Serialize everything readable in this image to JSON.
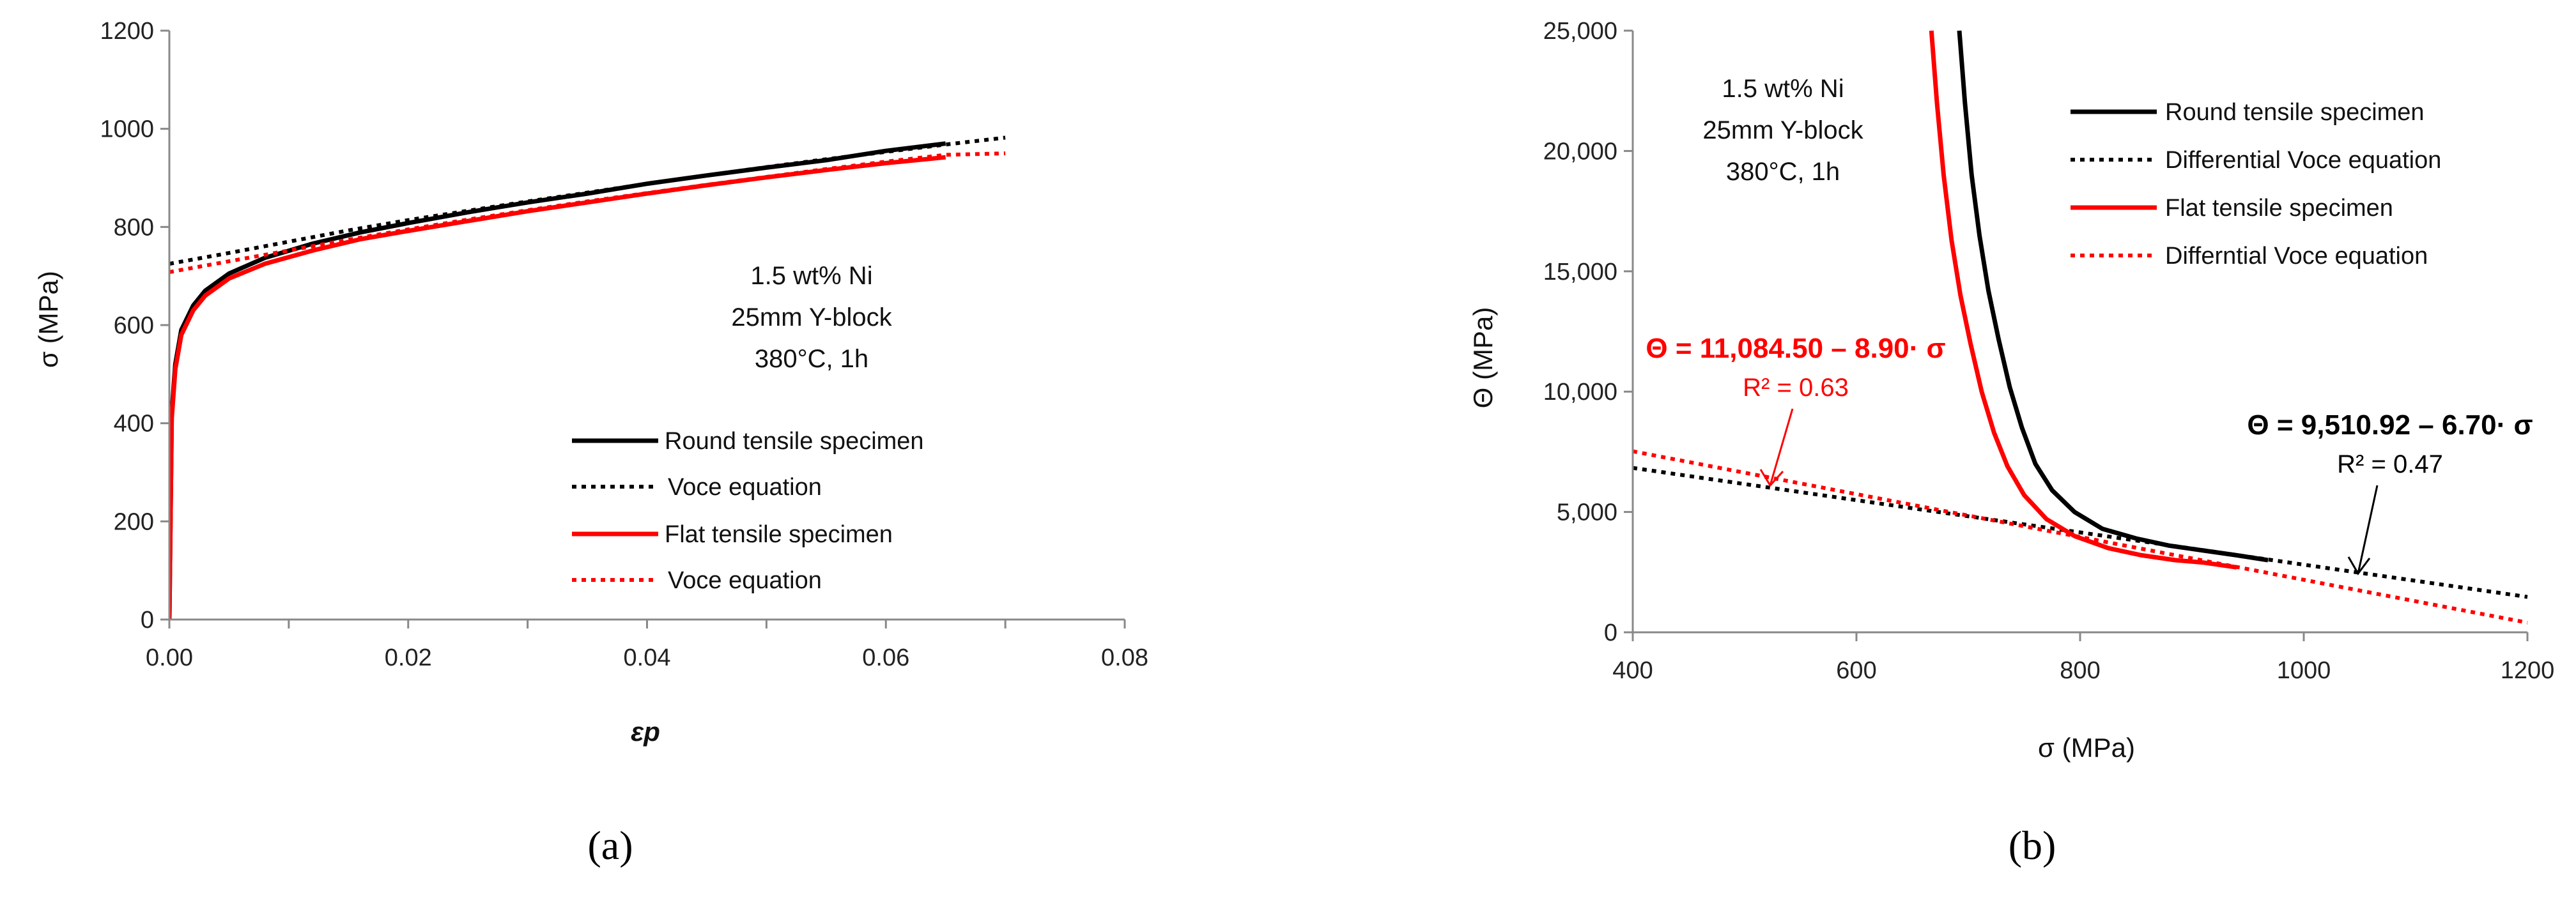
{
  "chart_data": [
    {
      "type": "line",
      "panel_label": "(a)",
      "xlabel": "εp",
      "ylabel": "σ (MPa)",
      "xlim": [
        0,
        0.08
      ],
      "ylim": [
        0,
        1200
      ],
      "xticks": [
        "0.00",
        "0.02",
        "0.04",
        "0.06",
        "0.08"
      ],
      "yticks": [
        "0",
        "200",
        "400",
        "600",
        "800",
        "1000",
        "1200"
      ],
      "grid": false,
      "legend_placement": "lower-right",
      "annotation": [
        "1.5 wt% Ni",
        "25mm Y-block",
        "380°C, 1h"
      ],
      "series": [
        {
          "name": "Round tensile specimen",
          "color": "#000000",
          "style": "solid",
          "x": [
            0,
            0.0002,
            0.0005,
            0.001,
            0.002,
            0.003,
            0.005,
            0.008,
            0.012,
            0.016,
            0.02,
            0.025,
            0.03,
            0.035,
            0.04,
            0.045,
            0.05,
            0.055,
            0.06,
            0.065
          ],
          "y": [
            0,
            420,
            520,
            590,
            640,
            670,
            705,
            737,
            766,
            789,
            808,
            830,
            850,
            868,
            888,
            905,
            921,
            936,
            955,
            970
          ]
        },
        {
          "name": "Voce equation",
          "color": "#000000",
          "style": "dotted",
          "x": [
            0,
            0.005,
            0.01,
            0.015,
            0.02,
            0.025,
            0.03,
            0.035,
            0.04,
            0.045,
            0.05,
            0.055,
            0.06,
            0.065,
            0.07
          ],
          "y": [
            725,
            747,
            770,
            793,
            814,
            833,
            852,
            870,
            888,
            905,
            922,
            938,
            953,
            968,
            982
          ]
        },
        {
          "name": "Flat tensile specimen",
          "color": "#ff0000",
          "style": "solid",
          "x": [
            0,
            0.0002,
            0.0005,
            0.001,
            0.002,
            0.003,
            0.005,
            0.008,
            0.012,
            0.016,
            0.02,
            0.025,
            0.03,
            0.035,
            0.04,
            0.045,
            0.05,
            0.055,
            0.06,
            0.065
          ],
          "y": [
            0,
            410,
            510,
            580,
            630,
            660,
            695,
            725,
            752,
            775,
            792,
            812,
            832,
            850,
            868,
            885,
            901,
            916,
            930,
            942
          ]
        },
        {
          "name": "Voce equation",
          "color": "#ff0000",
          "style": "dotted",
          "x": [
            0,
            0.005,
            0.01,
            0.015,
            0.02,
            0.025,
            0.03,
            0.035,
            0.04,
            0.045,
            0.05,
            0.055,
            0.06,
            0.065,
            0.07
          ],
          "y": [
            708,
            730,
            752,
            774,
            795,
            815,
            834,
            852,
            869,
            886,
            902,
            918,
            933,
            947,
            950
          ]
        }
      ]
    },
    {
      "type": "line",
      "panel_label": "(b)",
      "xlabel": "σ (MPa)",
      "ylabel": "Θ (MPa)",
      "xlim": [
        400,
        1200
      ],
      "ylim": [
        0,
        25000
      ],
      "xticks": [
        "400",
        "600",
        "800",
        "1000",
        "1200"
      ],
      "yticks": [
        "0",
        "5,000",
        "10,000",
        "15,000",
        "20,000",
        "25,000"
      ],
      "grid": false,
      "legend_placement": "top-right",
      "annotation": [
        "1.5 wt% Ni",
        "25mm Y-block",
        "380°C, 1h"
      ],
      "equation_red": {
        "text": "Θ = 11,084.50 – 8.90· σ",
        "r2": "R² = 0.63"
      },
      "equation_black": {
        "text": "Θ = 9,510.92 – 6.70· σ",
        "r2": "R² = 0.47"
      },
      "series": [
        {
          "name": "Round tensile specimen",
          "color": "#000000",
          "style": "solid",
          "x": [
            692,
            697,
            703,
            710,
            718,
            727,
            737,
            748,
            760,
            775,
            795,
            820,
            850,
            880,
            910,
            940,
            968
          ],
          "y": [
            25000,
            22000,
            19000,
            16500,
            14200,
            12200,
            10200,
            8500,
            7000,
            5900,
            5000,
            4300,
            3900,
            3600,
            3400,
            3200,
            3000
          ]
        },
        {
          "name": "Differential Voce equation",
          "color": "#000000",
          "style": "dotted",
          "x": [
            400,
            1200
          ],
          "y": [
            6830,
            1470
          ]
        },
        {
          "name": "Flat tensile specimen",
          "color": "#ff0000",
          "style": "solid",
          "x": [
            667,
            672,
            678,
            685,
            693,
            702,
            712,
            723,
            735,
            750,
            770,
            795,
            825,
            855,
            885,
            910,
            940
          ],
          "y": [
            25000,
            22000,
            19000,
            16300,
            14000,
            12000,
            10000,
            8300,
            6900,
            5700,
            4700,
            4000,
            3500,
            3200,
            3000,
            2900,
            2700
          ]
        },
        {
          "name": "Differntial Voce equation",
          "color": "#ff0000",
          "style": "dotted",
          "x": [
            400,
            1200
          ],
          "y": [
            7520,
            400
          ]
        }
      ]
    }
  ]
}
